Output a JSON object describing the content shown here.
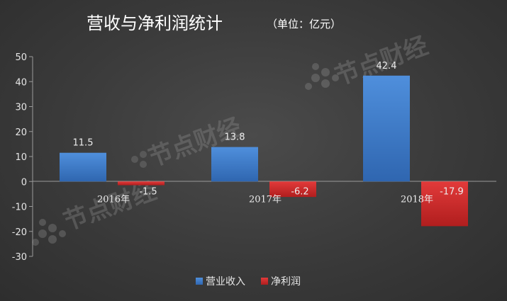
{
  "watermark": "节点财经",
  "chart_data": {
    "type": "bar",
    "title": "营收与净利润统计",
    "subtitle": "（单位：亿元）",
    "categories": [
      "2016年",
      "2017年",
      "2018年"
    ],
    "series": [
      {
        "name": "营业收入",
        "color": "#3f7fcc",
        "values": [
          11.5,
          13.8,
          42.4
        ],
        "labels": [
          "11.5",
          "13.8",
          "42.4"
        ]
      },
      {
        "name": "净利润",
        "color": "#d02a2a",
        "values": [
          -1.5,
          -6.2,
          -17.9
        ],
        "labels": [
          "-1.5",
          "-6.2",
          "-17.9"
        ]
      }
    ],
    "yticks": [
      "50",
      "40",
      "30",
      "20",
      "10",
      "0",
      "-10",
      "-20",
      "-30"
    ],
    "ylim": [
      -30,
      50
    ],
    "grid": false,
    "legend_position": "bottom"
  }
}
